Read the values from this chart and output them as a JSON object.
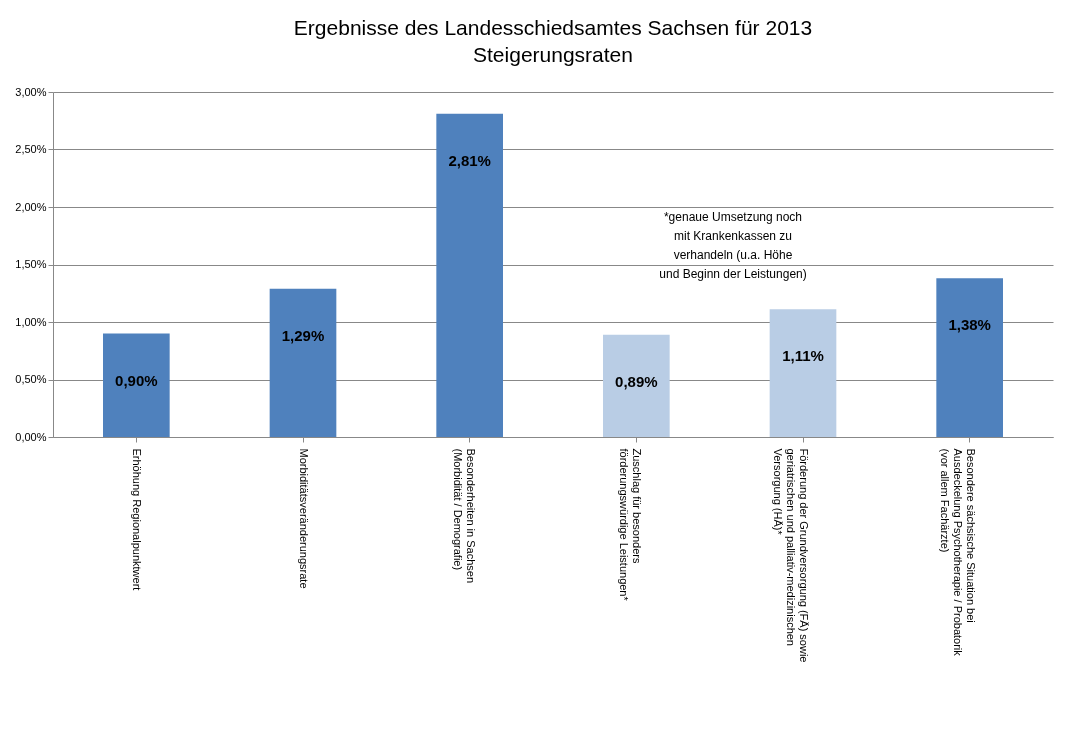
{
  "chart_data": {
    "type": "bar",
    "title": "Ergebnisse des Landesschiedsamtes Sachsen für 2013",
    "subtitle": "Steigerungsraten",
    "categories": [
      "Erhöhung Regionalpunktwert",
      "Morbiditätsveränderungsrate",
      "Besonderheiten in Sachsen\n(Morbidität / Demografie)",
      "Zuschlag für besonders\nförderungswürdige Leistungen*",
      "Förderung der Grundversorgung (FÄ) sowie\ngeriatrischen und palliativ-medizinischen\nVersorgung (HÄ)*",
      "Besondere sächsische Situation bei\nAusdeckelung Psychotherapie / Probatorik\n(vor allem Fachärzte)"
    ],
    "values": [
      0.9,
      1.29,
      2.81,
      0.89,
      1.11,
      1.38
    ],
    "value_labels": [
      "0,90%",
      "1,29%",
      "2,81%",
      "0,89%",
      "1,11%",
      "1,38%"
    ],
    "colors": [
      "#4f81bd",
      "#4f81bd",
      "#4f81bd",
      "#b9cde5",
      "#b9cde5",
      "#4f81bd"
    ],
    "ylim": [
      0,
      3
    ],
    "yticks": [
      {
        "value": 0,
        "label": "0,00%"
      },
      {
        "value": 0.5,
        "label": "0,50%"
      },
      {
        "value": 1,
        "label": "1,00%"
      },
      {
        "value": 1.5,
        "label": "1,50%"
      },
      {
        "value": 2,
        "label": "2,00%"
      },
      {
        "value": 2.5,
        "label": "2,50%"
      },
      {
        "value": 3,
        "label": "3,00%"
      }
    ],
    "grid": "y",
    "annotations": [
      "*genaue Umsetzung noch\nmit Krankenkassen zu\nverhandeln (u.a. Höhe\nund Beginn der Leistungen)"
    ]
  }
}
